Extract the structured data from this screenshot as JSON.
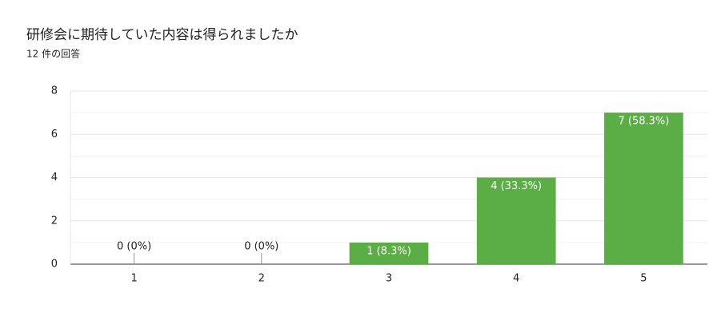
{
  "chart_data": {
    "type": "bar",
    "title": "研修会に期待していた内容は得られましたか",
    "subtitle": "12 件の回答",
    "categories": [
      "1",
      "2",
      "3",
      "4",
      "5"
    ],
    "values": [
      0,
      0,
      1,
      4,
      7
    ],
    "value_labels": [
      "0 (0%)",
      "0 (0%)",
      "1 (8.3%)",
      "4 (33.3%)",
      "7 (58.3%)"
    ],
    "color": "#5aae45",
    "ylim": [
      0,
      8
    ],
    "yticks": [
      0,
      2,
      4,
      6,
      8
    ],
    "minor_yticks": [
      1,
      3,
      5,
      7
    ],
    "grid": true
  }
}
